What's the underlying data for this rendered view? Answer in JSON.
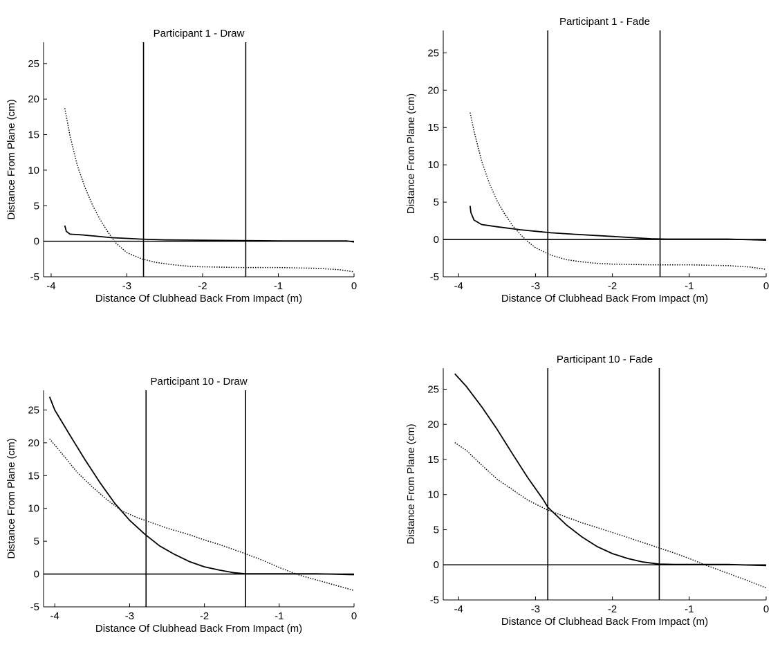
{
  "chart_data": [
    {
      "type": "line",
      "title": "Participant 1 - Draw",
      "xlabel": "Distance Of Clubhead Back From Impact (m)",
      "ylabel": "Distance From Plane (cm)",
      "xlim": [
        -4.1,
        0
      ],
      "ylim": [
        -5,
        28
      ],
      "xticks": [
        -4,
        -3,
        -2,
        -1,
        0
      ],
      "yticks": [
        -5,
        0,
        5,
        10,
        15,
        20,
        25
      ],
      "grid": false,
      "vlines": [
        -2.78,
        -1.43
      ],
      "hline": 0,
      "series": [
        {
          "style": "solid",
          "color": "#000000",
          "x": [
            -3.82,
            -3.8,
            -3.75,
            -3.6,
            -3.4,
            -3.2,
            -3.0,
            -2.8,
            -2.5,
            -2.0,
            -1.5,
            -1.0,
            -0.5,
            -0.1,
            0
          ],
          "y": [
            2.2,
            1.4,
            1.0,
            0.9,
            0.7,
            0.5,
            0.4,
            0.3,
            0.2,
            0.15,
            0.1,
            0.05,
            0.05,
            0.05,
            -0.1
          ]
        },
        {
          "style": "dotted",
          "color": "#000000",
          "x": [
            -3.82,
            -3.75,
            -3.65,
            -3.55,
            -3.45,
            -3.35,
            -3.25,
            -3.15,
            -3.0,
            -2.8,
            -2.6,
            -2.4,
            -2.2,
            -2.0,
            -1.5,
            -1.0,
            -0.5,
            -0.2,
            0
          ],
          "y": [
            18.7,
            14.8,
            10.5,
            7.5,
            5.0,
            3.0,
            1.3,
            -0.2,
            -1.6,
            -2.5,
            -3.0,
            -3.3,
            -3.5,
            -3.6,
            -3.7,
            -3.7,
            -3.8,
            -4.0,
            -4.3
          ]
        }
      ]
    },
    {
      "type": "line",
      "title": "Participant 1 - Fade",
      "xlabel": "Distance Of Clubhead Back From Impact (m)",
      "ylabel": "Distance From Plane (cm)",
      "xlim": [
        -4.2,
        0
      ],
      "ylim": [
        -5,
        28
      ],
      "xticks": [
        -4,
        -3,
        -2,
        -1,
        0
      ],
      "yticks": [
        -5,
        0,
        5,
        10,
        15,
        20,
        25
      ],
      "grid": false,
      "vlines": [
        -2.84,
        -1.38
      ],
      "hline": 0,
      "series": [
        {
          "style": "solid",
          "color": "#000000",
          "x": [
            -3.85,
            -3.84,
            -3.8,
            -3.7,
            -3.5,
            -3.2,
            -3.0,
            -2.8,
            -2.5,
            -2.0,
            -1.5,
            -1.3,
            -1.0,
            -0.5,
            0
          ],
          "y": [
            4.5,
            3.6,
            2.6,
            2.0,
            1.7,
            1.3,
            1.1,
            0.9,
            0.7,
            0.4,
            0.1,
            0.05,
            0.05,
            0.05,
            -0.1
          ]
        },
        {
          "style": "dotted",
          "color": "#000000",
          "x": [
            -3.85,
            -3.8,
            -3.7,
            -3.6,
            -3.5,
            -3.4,
            -3.3,
            -3.2,
            -3.1,
            -3.0,
            -2.8,
            -2.6,
            -2.4,
            -2.2,
            -2.0,
            -1.5,
            -1.0,
            -0.5,
            -0.2,
            0
          ],
          "y": [
            17.0,
            14.5,
            10.5,
            7.5,
            5.2,
            3.4,
            1.9,
            0.7,
            -0.3,
            -1.1,
            -2.1,
            -2.7,
            -3.0,
            -3.2,
            -3.3,
            -3.4,
            -3.4,
            -3.5,
            -3.7,
            -4.0
          ]
        }
      ]
    },
    {
      "type": "line",
      "title": "Participant 10 - Draw",
      "xlabel": "Distance Of Clubhead Back From Impact (m)",
      "ylabel": "Distance From Plane (cm)",
      "xlim": [
        -4.15,
        0
      ],
      "ylim": [
        -5,
        28
      ],
      "xticks": [
        -4,
        -3,
        -2,
        -1,
        0
      ],
      "yticks": [
        -5,
        0,
        5,
        10,
        15,
        20,
        25
      ],
      "grid": false,
      "vlines": [
        -2.78,
        -1.45
      ],
      "hline": 0,
      "series": [
        {
          "style": "solid",
          "color": "#000000",
          "x": [
            -4.07,
            -4.0,
            -3.8,
            -3.6,
            -3.4,
            -3.2,
            -3.0,
            -2.8,
            -2.6,
            -2.4,
            -2.2,
            -2.0,
            -1.8,
            -1.6,
            -1.45,
            -1.2,
            -1.0,
            -0.5,
            0
          ],
          "y": [
            27.0,
            25.0,
            21.2,
            17.5,
            14.0,
            10.8,
            8.2,
            6.1,
            4.3,
            3.0,
            1.9,
            1.1,
            0.6,
            0.2,
            0.05,
            0.05,
            0.05,
            0.05,
            -0.1
          ]
        },
        {
          "style": "dotted",
          "color": "#000000",
          "x": [
            -4.07,
            -3.9,
            -3.7,
            -3.5,
            -3.3,
            -3.1,
            -2.9,
            -2.7,
            -2.5,
            -2.2,
            -2.0,
            -1.8,
            -1.5,
            -1.2,
            -1.0,
            -0.75,
            -0.5,
            -0.25,
            0
          ],
          "y": [
            20.6,
            18.3,
            15.5,
            13.3,
            11.3,
            9.6,
            8.6,
            7.8,
            7.0,
            6.0,
            5.2,
            4.5,
            3.3,
            2.0,
            1.0,
            -0.1,
            -0.9,
            -1.7,
            -2.5
          ]
        }
      ]
    },
    {
      "type": "line",
      "title": "Participant 10 - Fade",
      "xlabel": "Distance Of Clubhead Back From Impact (m)",
      "ylabel": "Distance From Plane (cm)",
      "xlim": [
        -4.2,
        0
      ],
      "ylim": [
        -5,
        28
      ],
      "xticks": [
        -4,
        -3,
        -2,
        -1,
        0
      ],
      "yticks": [
        -5,
        0,
        5,
        10,
        15,
        20,
        25
      ],
      "grid": false,
      "vlines": [
        -2.84,
        -1.39
      ],
      "hline": 0,
      "series": [
        {
          "style": "solid",
          "color": "#000000",
          "x": [
            -4.05,
            -3.9,
            -3.7,
            -3.5,
            -3.3,
            -3.1,
            -2.9,
            -2.84,
            -2.6,
            -2.4,
            -2.2,
            -2.0,
            -1.8,
            -1.6,
            -1.39,
            -1.2,
            -1.0,
            -0.5,
            0
          ],
          "y": [
            27.2,
            25.4,
            22.5,
            19.3,
            15.8,
            12.4,
            9.3,
            8.2,
            5.7,
            4.0,
            2.6,
            1.6,
            0.9,
            0.4,
            0.1,
            0.05,
            0.05,
            0.05,
            -0.1
          ]
        },
        {
          "style": "dotted",
          "color": "#000000",
          "x": [
            -4.05,
            -3.9,
            -3.7,
            -3.5,
            -3.3,
            -3.1,
            -2.84,
            -2.6,
            -2.4,
            -2.2,
            -2.0,
            -1.8,
            -1.5,
            -1.2,
            -1.0,
            -0.8,
            -0.5,
            -0.25,
            0
          ],
          "y": [
            17.4,
            16.3,
            14.2,
            12.2,
            10.7,
            9.2,
            7.8,
            6.8,
            6.0,
            5.3,
            4.6,
            3.9,
            2.8,
            1.7,
            0.9,
            0.0,
            -1.2,
            -2.2,
            -3.3
          ]
        }
      ]
    }
  ]
}
